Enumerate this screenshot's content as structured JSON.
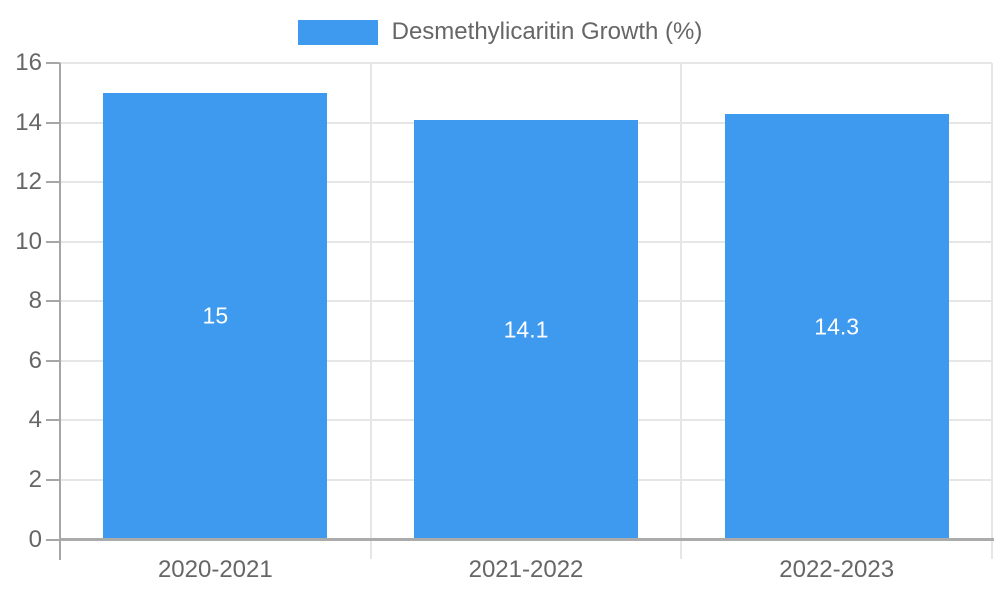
{
  "chart_data": {
    "type": "bar",
    "title": "",
    "legend": {
      "label": "Desmethylicaritin Growth (%)",
      "position": "top-center"
    },
    "categories": [
      "2020-2021",
      "2021-2022",
      "2022-2023"
    ],
    "series": [
      {
        "name": "Desmethylicaritin Growth (%)",
        "values": [
          15,
          14.1,
          14.3
        ]
      }
    ],
    "bar_labels": [
      "15",
      "14.1",
      "14.3"
    ],
    "xlabel": "",
    "ylabel": "",
    "ylim": [
      0,
      16
    ],
    "ytick_step": 2,
    "yticks": [
      0,
      2,
      4,
      6,
      8,
      10,
      12,
      14,
      16
    ],
    "grid": true,
    "colors": {
      "bar": "#3E9AEE",
      "bar_label_text": "#FFFFFF",
      "axis_text": "#666666",
      "legend_text": "#666666",
      "gridline": "#E6E6E6",
      "separator": "#E6E6E6",
      "axis_line": "#A6A6A6",
      "baseline": "#ABABAB",
      "background": "#FFFFFF"
    }
  }
}
